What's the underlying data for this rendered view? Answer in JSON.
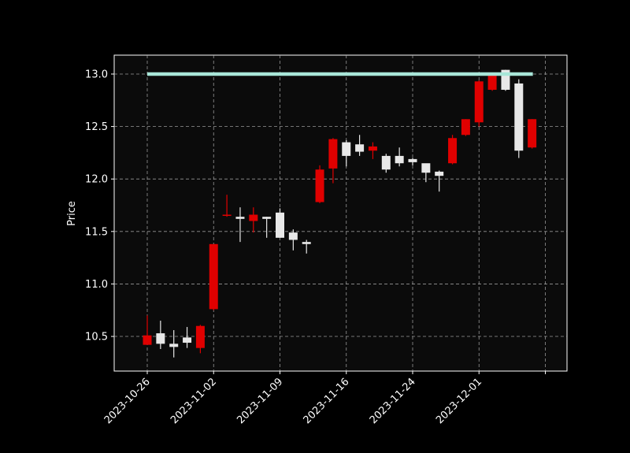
{
  "chart_data": {
    "type": "candlestick",
    "ylabel": "Price",
    "xlabel": "",
    "ylim": [
      10.17,
      13.18
    ],
    "grid": true,
    "colors": {
      "background": "#000000",
      "plot_background": "#0b0b0b",
      "up": "#e8e8e8",
      "down": "#e00000",
      "reference_line": "#a8e6d8",
      "text": "#ffffff"
    },
    "x_ticks": [
      "2023-10-26",
      "2023-11-02",
      "2023-11-09",
      "2023-11-16",
      "2023-11-24",
      "2023-12-01",
      ""
    ],
    "y_ticks": [
      "10.5",
      "11.0",
      "11.5",
      "12.0",
      "12.5",
      "13.0"
    ],
    "y_tick_values": [
      10.5,
      11.0,
      11.5,
      12.0,
      12.5,
      13.0
    ],
    "reference_line": {
      "value": 13.0
    },
    "candles": [
      {
        "date": "2023-10-26",
        "open": 10.51,
        "high": 10.7,
        "low": 10.42,
        "close": 10.42
      },
      {
        "date": "2023-10-27",
        "open": 10.43,
        "high": 10.65,
        "low": 10.38,
        "close": 10.53
      },
      {
        "date": "2023-10-30",
        "open": 10.4,
        "high": 10.56,
        "low": 10.3,
        "close": 10.43
      },
      {
        "date": "2023-10-31",
        "open": 10.44,
        "high": 10.59,
        "low": 10.39,
        "close": 10.49
      },
      {
        "date": "2023-11-01",
        "open": 10.6,
        "high": 10.61,
        "low": 10.34,
        "close": 10.39
      },
      {
        "date": "2023-11-02",
        "open": 11.38,
        "high": 11.38,
        "low": 10.75,
        "close": 10.76
      },
      {
        "date": "2023-11-03",
        "open": 11.66,
        "high": 11.85,
        "low": 11.64,
        "close": 11.65
      },
      {
        "date": "2023-11-06",
        "open": 11.62,
        "high": 11.73,
        "low": 11.4,
        "close": 11.64
      },
      {
        "date": "2023-11-07",
        "open": 11.66,
        "high": 11.73,
        "low": 11.49,
        "close": 11.6
      },
      {
        "date": "2023-11-08",
        "open": 11.62,
        "high": 11.64,
        "low": 11.44,
        "close": 11.64
      },
      {
        "date": "2023-11-09",
        "open": 11.44,
        "high": 11.72,
        "low": 11.44,
        "close": 11.68
      },
      {
        "date": "2023-11-10",
        "open": 11.42,
        "high": 11.52,
        "low": 11.32,
        "close": 11.49
      },
      {
        "date": "2023-11-13",
        "open": 11.38,
        "high": 11.42,
        "low": 11.29,
        "close": 11.4
      },
      {
        "date": "2023-11-14",
        "open": 12.09,
        "high": 12.13,
        "low": 11.77,
        "close": 11.78
      },
      {
        "date": "2023-11-15",
        "open": 12.38,
        "high": 12.39,
        "low": 11.96,
        "close": 12.1
      },
      {
        "date": "2023-11-16",
        "open": 12.22,
        "high": 12.37,
        "low": 12.12,
        "close": 12.35
      },
      {
        "date": "2023-11-17",
        "open": 12.26,
        "high": 12.42,
        "low": 12.22,
        "close": 12.33
      },
      {
        "date": "2023-11-20",
        "open": 12.31,
        "high": 12.35,
        "low": 12.19,
        "close": 12.27
      },
      {
        "date": "2023-11-21",
        "open": 12.09,
        "high": 12.24,
        "low": 12.06,
        "close": 12.22
      },
      {
        "date": "2023-11-22",
        "open": 12.15,
        "high": 12.3,
        "low": 12.12,
        "close": 12.22
      },
      {
        "date": "2023-11-24",
        "open": 12.16,
        "high": 12.2,
        "low": 12.13,
        "close": 12.19
      },
      {
        "date": "2023-11-27",
        "open": 12.06,
        "high": 12.14,
        "low": 11.97,
        "close": 12.15
      },
      {
        "date": "2023-11-28",
        "open": 12.03,
        "high": 12.08,
        "low": 11.88,
        "close": 12.07
      },
      {
        "date": "2023-11-29",
        "open": 12.39,
        "high": 12.42,
        "low": 12.14,
        "close": 12.15
      },
      {
        "date": "2023-11-30",
        "open": 12.57,
        "high": 12.57,
        "low": 12.41,
        "close": 12.42
      },
      {
        "date": "2023-12-01",
        "open": 12.93,
        "high": 12.94,
        "low": 12.5,
        "close": 12.54
      },
      {
        "date": "2023-12-04",
        "open": 13.0,
        "high": 13.0,
        "low": 12.84,
        "close": 12.85
      },
      {
        "date": "2023-12-05",
        "open": 12.85,
        "high": 13.04,
        "low": 12.84,
        "close": 13.04
      },
      {
        "date": "2023-12-06",
        "open": 12.27,
        "high": 12.95,
        "low": 12.2,
        "close": 12.91
      },
      {
        "date": "2023-12-07",
        "open": 12.57,
        "high": 12.57,
        "low": 12.29,
        "close": 12.3
      }
    ]
  }
}
